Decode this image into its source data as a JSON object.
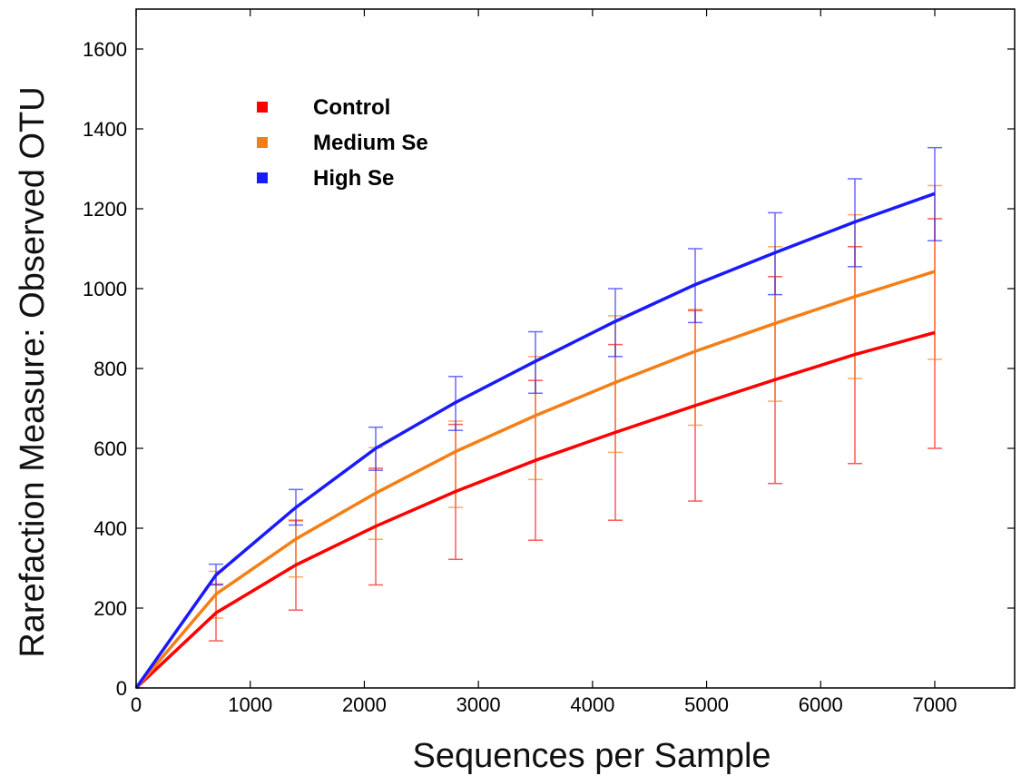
{
  "chart_data": {
    "type": "line",
    "xlabel": "Sequences per Sample",
    "ylabel": "Rarefaction Measure: Observed OTU",
    "xlim": [
      0,
      7700
    ],
    "ylim": [
      0,
      1700
    ],
    "x_ticks": [
      "0",
      "1000",
      "2000",
      "3000",
      "4000",
      "5000",
      "6000",
      "7000"
    ],
    "y_ticks": [
      "0",
      "200",
      "400",
      "600",
      "800",
      "1000",
      "1200",
      "1400",
      "1600"
    ],
    "x_tick_values": [
      0,
      1000,
      2000,
      3000,
      4000,
      5000,
      6000,
      7000
    ],
    "y_tick_values": [
      0,
      200,
      400,
      600,
      800,
      1000,
      1200,
      1400,
      1600
    ],
    "grid": false,
    "legend_position": "top-left",
    "x": [
      0,
      700,
      1400,
      2100,
      2800,
      3500,
      4200,
      4900,
      5600,
      6300,
      7000
    ],
    "series": [
      {
        "name": "Control",
        "color": "#ff0000",
        "values": [
          0,
          188,
          308,
          405,
          492,
          570,
          640,
          707,
          772,
          835,
          890
        ],
        "error_low": [
          0,
          118,
          195,
          258,
          322,
          370,
          420,
          468,
          512,
          562,
          600
        ],
        "error_high": [
          0,
          260,
          420,
          550,
          660,
          770,
          860,
          945,
          1030,
          1105,
          1175
        ]
      },
      {
        "name": "Medium Se",
        "color": "#f57f17",
        "values": [
          0,
          235,
          373,
          488,
          592,
          682,
          765,
          843,
          913,
          980,
          1043
        ],
        "error_low": [
          0,
          175,
          278,
          372,
          452,
          522,
          590,
          658,
          718,
          775,
          823
        ],
        "error_high": [
          0,
          292,
          418,
          602,
          668,
          830,
          932,
          948,
          1105,
          1185,
          1258
        ]
      },
      {
        "name": "High Se",
        "color": "#1a1aff",
        "values": [
          0,
          283,
          452,
          600,
          715,
          818,
          918,
          1010,
          1090,
          1167,
          1238
        ],
        "error_low": [
          0,
          258,
          408,
          545,
          645,
          738,
          830,
          915,
          985,
          1055,
          1120
        ],
        "error_high": [
          0,
          310,
          497,
          653,
          780,
          892,
          1000,
          1100,
          1190,
          1275,
          1353
        ]
      }
    ]
  }
}
